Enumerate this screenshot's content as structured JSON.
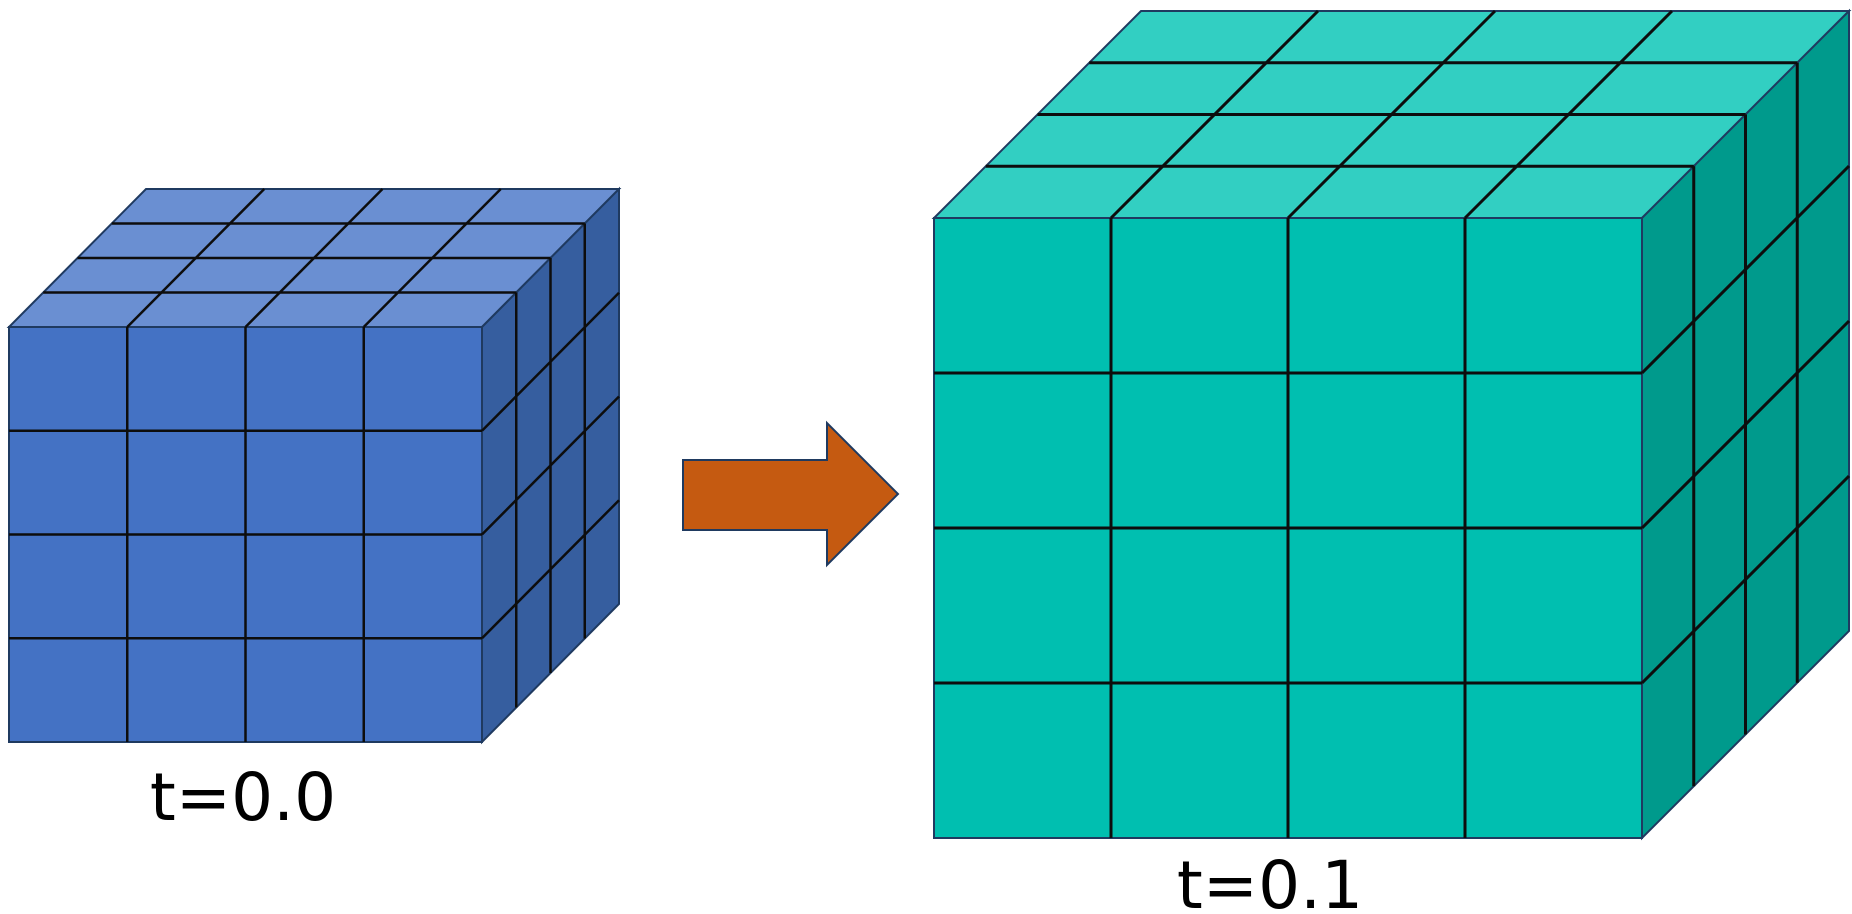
{
  "diagram": {
    "before": {
      "label": "t=0.0",
      "grid": 4,
      "colors": {
        "front": "#4472C4",
        "top": "#6A8FD2",
        "side": "#365E9F"
      }
    },
    "after": {
      "label": "t=0.1",
      "grid": 4,
      "colors": {
        "front": "#00BFB0",
        "top": "#32CFC2",
        "side": "#009A8C"
      }
    },
    "arrow": {
      "color": "#C55A11"
    },
    "stroke_color": "#0D0D0D",
    "outline_color": "#1F3A60"
  }
}
